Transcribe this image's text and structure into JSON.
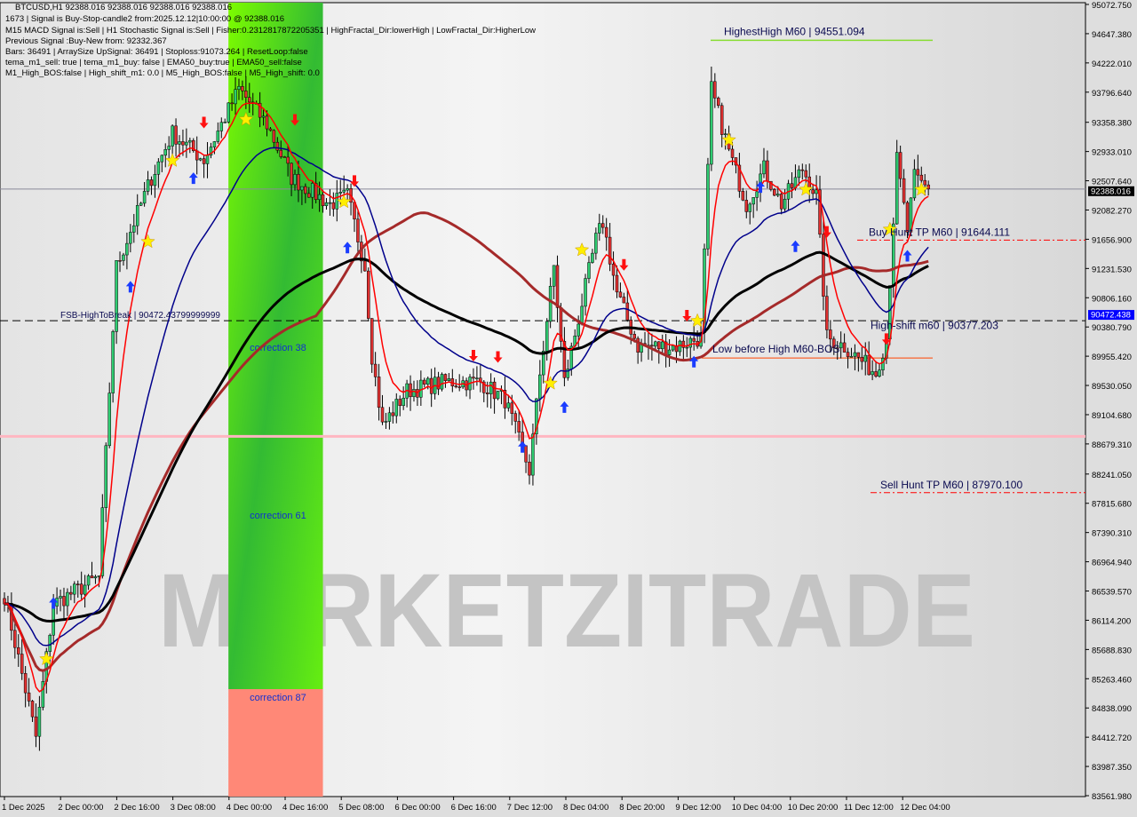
{
  "window": {
    "symbol_line": "BTCUSD,H1  92388.016 92388.016 92388.016 92388.016"
  },
  "info_lines": [
    "1673 | Signal is Buy-Stop-candle2 from:2025.12.12|10:00:00 @ 92388.016",
    "M15 MACD Signal is:Sell | H1 Stochastic Signal is:Sell | Fisher:0.2312817872205351 | HighFractal_Dir:lowerHigh | LowFractal_Dir:HigherLow",
    "Previous Signal :Buy-New from: 92332.367",
    "Bars: 36491 | ArraySize UpSignal: 36491 | Stoploss:91073.264 | ResetLoop:false",
    "tema_m1_sell: true | tema_m1_buy: false | EMA50_buy:true | EMA50_sell:false",
    "M1_High_BOS:false | High_shift_m1: 0.0 | M5_High_BOS:false | M5_High_shift: 0.0"
  ],
  "watermark": "MARKETZITRADE",
  "colors": {
    "background": "#dedede",
    "bull": "#2ecc71",
    "bear": "#e03030",
    "fast_ma": "#ff0000",
    "mid_ma": "#00008b",
    "slow_ma": "#000000",
    "slow_sma": "#a52a2a",
    "zone_green": "#44dd22",
    "zone_red": "#ff8877",
    "current_price_box": "#000000",
    "fsb_box": "#0000ff"
  },
  "chart_data": {
    "type": "candlestick",
    "timeframe": "H1",
    "ylim": [
      83561.98,
      95072.75
    ],
    "y_ticks": [
      "95072.750",
      "94647.380",
      "94222.010",
      "93796.640",
      "93358.380",
      "92933.010",
      "92507.640",
      "92082.270",
      "91656.900",
      "91231.530",
      "90806.160",
      "90380.790",
      "89955.420",
      "89530.050",
      "89104.680",
      "88679.310",
      "88241.050",
      "87815.680",
      "87390.310",
      "86964.940",
      "86539.570",
      "86114.200",
      "85688.830",
      "85263.460",
      "84838.090",
      "84412.720",
      "83987.350",
      "83561.980"
    ],
    "x_ticks": [
      "1 Dec 2025",
      "2 Dec 00:00",
      "2 Dec 16:00",
      "3 Dec 08:00",
      "4 Dec 00:00",
      "4 Dec 16:00",
      "5 Dec 08:00",
      "6 Dec 00:00",
      "6 Dec 16:00",
      "7 Dec 12:00",
      "8 Dec 04:00",
      "8 Dec 20:00",
      "9 Dec 12:00",
      "10 Dec 04:00",
      "10 Dec 20:00",
      "11 Dec 12:00",
      "12 Dec 04:00"
    ],
    "close_path": [
      [
        "1 Dec 08:00",
        86481
      ],
      [
        "1 Dec 17:00",
        84414
      ],
      [
        "1 Dec 22:00",
        86352
      ],
      [
        "2 Dec 11:00",
        86740
      ],
      [
        "2 Dec 16:00",
        91261
      ],
      [
        "3 Dec 02:00",
        92553
      ],
      [
        "3 Dec 08:00",
        93199
      ],
      [
        "3 Dec 17:00",
        92811
      ],
      [
        "4 Dec 03:00",
        93845
      ],
      [
        "4 Dec 11:00",
        93328
      ],
      [
        "4 Dec 18:00",
        92553
      ],
      [
        "5 Dec 05:00",
        92166
      ],
      [
        "5 Dec 10:00",
        92295
      ],
      [
        "5 Dec 15:00",
        91261
      ],
      [
        "5 Dec 17:00",
        89969
      ],
      [
        "5 Dec 20:00",
        88936
      ],
      [
        "6 Dec 03:00",
        89453
      ],
      [
        "6 Dec 14:00",
        89582
      ],
      [
        "7 Dec 00:00",
        89582
      ],
      [
        "7 Dec 07:00",
        89323
      ],
      [
        "7 Dec 14:00",
        88290
      ],
      [
        "7 Dec 17:00",
        89711
      ],
      [
        "7 Dec 21:00",
        91261
      ],
      [
        "8 Dec 00:00",
        89582
      ],
      [
        "8 Dec 09:00",
        91649
      ],
      [
        "8 Dec 11:00",
        91907
      ],
      [
        "8 Dec 15:00",
        90874
      ],
      [
        "8 Dec 21:00",
        90099
      ],
      [
        "9 Dec 08:00",
        90099
      ],
      [
        "9 Dec 15:00",
        90228
      ],
      [
        "9 Dec 18:00",
        93845
      ],
      [
        "9 Dec 23:00",
        92941
      ],
      [
        "10 Dec 04:00",
        92166
      ],
      [
        "10 Dec 09:00",
        92683
      ],
      [
        "10 Dec 14:00",
        92166
      ],
      [
        "10 Dec 20:00",
        92683
      ],
      [
        "11 Dec 00:00",
        92295
      ],
      [
        "11 Dec 03:00",
        90228
      ],
      [
        "11 Dec 08:00",
        90099
      ],
      [
        "11 Dec 17:00",
        89711
      ],
      [
        "11 Dec 20:00",
        90228
      ],
      [
        "11 Dec 23:00",
        92811
      ],
      [
        "12 Dec 02:00",
        91778
      ],
      [
        "12 Dec 04:00",
        92553
      ],
      [
        "12 Dec 08:00",
        92388
      ]
    ],
    "current_price": "92388.016",
    "fsb_price": "90472.438",
    "levels": {
      "fsb": {
        "label": "FSB-HighToBreak | 90472.43799999999",
        "price": 90472.438
      },
      "highest_high": {
        "label": "HighestHigh    M60 | 94551.094",
        "price": 94551.094
      },
      "buy_hunt": {
        "label": "Buy Hunt TP M60 | 91644.111",
        "price": 91644.111
      },
      "high_shift": {
        "label": "High-shift m60 | 90377.203",
        "price": 90377.203
      },
      "low_before_high": {
        "label": "Low before High    M60-BOS",
        "price": 89930
      },
      "sell_hunt": {
        "label": "Sell Hunt TP M60 | 87970.100",
        "price": 87970.1
      },
      "pink_line": {
        "price": 88790
      }
    },
    "zones": {
      "correction_38": "correction 38",
      "correction_61": "correction 61",
      "correction_87": "correction 87",
      "start": "4 Dec 00:00",
      "end": "5 Dec 03:00"
    },
    "markers": [
      [
        "buy",
        "1 Dec 22:00",
        86450
      ],
      [
        "buy",
        "2 Dec 20:00",
        91050
      ],
      [
        "buy",
        "3 Dec 14:00",
        92630
      ],
      [
        "sell",
        "3 Dec 17:00",
        93270
      ],
      [
        "sell",
        "4 Dec 19:00",
        93310
      ],
      [
        "sell",
        "5 Dec 12:00",
        92420
      ],
      [
        "buy",
        "5 Dec 10:00",
        91620
      ],
      [
        "sell",
        "6 Dec 22:00",
        89880
      ],
      [
        "sell",
        "7 Dec 05:00",
        89860
      ],
      [
        "buy",
        "7 Dec 12:00",
        88720
      ],
      [
        "buy",
        "8 Dec 00:00",
        89300
      ],
      [
        "sell",
        "8 Dec 17:00",
        91200
      ],
      [
        "sell",
        "9 Dec 11:00",
        90460
      ],
      [
        "buy",
        "9 Dec 13:00",
        89960
      ],
      [
        "buy",
        "10 Dec 08:00",
        92500
      ],
      [
        "buy",
        "10 Dec 18:00",
        91640
      ],
      [
        "sell",
        "11 Dec 03:00",
        91680
      ],
      [
        "sell",
        "11 Dec 20:00",
        90120
      ],
      [
        "buy",
        "12 Dec 02:00",
        91500
      ],
      [
        "star",
        "1 Dec 20:00",
        85550
      ],
      [
        "star",
        "3 Dec 01:00",
        91620
      ],
      [
        "star",
        "3 Dec 08:00",
        92800
      ],
      [
        "star",
        "4 Dec 05:00",
        93400
      ],
      [
        "star",
        "5 Dec 09:00",
        92200
      ],
      [
        "star",
        "7 Dec 20:00",
        89560
      ],
      [
        "star",
        "8 Dec 05:00",
        91500
      ],
      [
        "star",
        "9 Dec 14:00",
        90470
      ],
      [
        "star",
        "9 Dec 23:00",
        93100
      ],
      [
        "star",
        "10 Dec 21:00",
        92380
      ],
      [
        "star",
        "11 Dec 21:00",
        91800
      ],
      [
        "star",
        "12 Dec 06:00",
        92380
      ]
    ]
  }
}
